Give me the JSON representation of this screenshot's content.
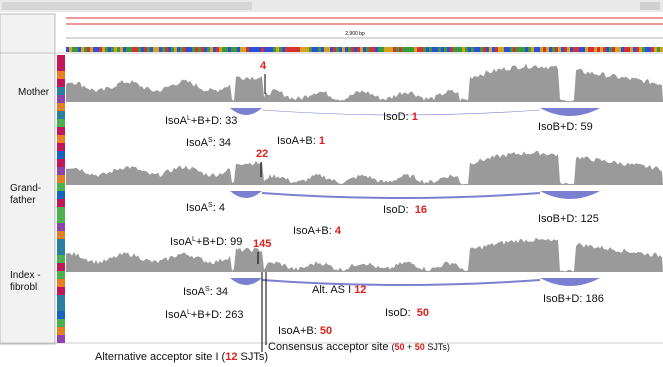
{
  "ruler": {
    "span": "2,900 bp"
  },
  "tracks": [
    {
      "name": [
        "Mother"
      ],
      "peak": "4",
      "labels": [
        [
          {
            "text": "IsoA"
          },
          {
            "text": "L",
            "sup": true
          },
          {
            "text": "+B+D: "
          },
          {
            "text": "33"
          }
        ],
        [
          {
            "text": "IsoD: "
          },
          {
            "text": "1",
            "red": true
          }
        ],
        [
          {
            "text": "IsoB+D: "
          },
          {
            "text": "59"
          }
        ],
        [
          {
            "text": "IsoA"
          },
          {
            "text": "S",
            "sup": true
          },
          {
            "text": ": "
          },
          {
            "text": "34"
          }
        ],
        [
          {
            "text": "IsoA+B: "
          },
          {
            "text": "1",
            "red": true
          }
        ]
      ]
    },
    {
      "name": [
        "Grand-",
        "father"
      ],
      "peak": "22",
      "labels": [
        [
          {
            "text": "IsoA"
          },
          {
            "text": "S",
            "sup": true
          },
          {
            "text": ": "
          },
          {
            "text": "4"
          }
        ],
        [
          {
            "text": "IsoD:  "
          },
          {
            "text": "16",
            "red": true
          }
        ],
        [
          {
            "text": "IsoB+D: "
          },
          {
            "text": "125"
          }
        ],
        [
          {
            "text": "IsoA"
          },
          {
            "text": "L",
            "sup": true
          },
          {
            "text": "+B+D: "
          },
          {
            "text": "99"
          }
        ],
        [
          {
            "text": "IsoA+B: "
          },
          {
            "text": "4",
            "red": true
          }
        ]
      ]
    },
    {
      "name": [
        "Index -",
        "fibrobl"
      ],
      "peak": "145",
      "labels": [
        [
          {
            "text": "IsoA"
          },
          {
            "text": "S",
            "sup": true
          },
          {
            "text": ": "
          },
          {
            "text": "34"
          }
        ],
        [
          {
            "text": "Alt. AS I "
          },
          {
            "text": "12",
            "red": true
          }
        ],
        [
          {
            "text": "IsoB+D: "
          },
          {
            "text": "186"
          }
        ],
        [
          {
            "text": "IsoA"
          },
          {
            "text": "L",
            "sup": true
          },
          {
            "text": "+B+D: "
          },
          {
            "text": "263"
          }
        ],
        [
          {
            "text": "IsoD:  "
          },
          {
            "text": "50",
            "red": true
          }
        ],
        [
          {
            "text": "IsoA+B: "
          },
          {
            "text": "50",
            "red": true
          }
        ]
      ]
    }
  ],
  "footer": [
    [
      {
        "text": "Alternative acceptor site I ("
      },
      {
        "text": "12",
        "red": true
      },
      {
        "text": " SJTs)"
      }
    ],
    [
      {
        "text": "Consensus acceptor site "
      },
      {
        "text": "(",
        "small": true
      },
      {
        "text": "50",
        "red": true,
        "small": true
      },
      {
        "text": " + ",
        "small": true
      },
      {
        "text": "50",
        "red": true,
        "small": true
      },
      {
        "text": " SJTs)",
        "small": true
      }
    ]
  ]
}
